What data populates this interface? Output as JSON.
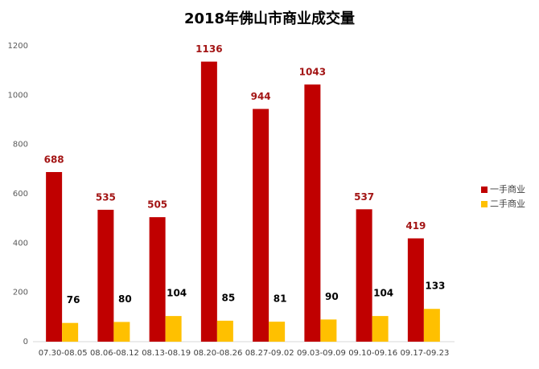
{
  "chart_data": {
    "type": "bar",
    "title": "2018年佛山市商业成交量",
    "categories": [
      "07.30-08.05",
      "08.06-08.12",
      "08.13-08.19",
      "08.20-08.26",
      "08.27-09.02",
      "09.03-09.09",
      "09.10-09.16",
      "09.17-09.23"
    ],
    "series": [
      {
        "name": "一手商业",
        "color": "#c00000",
        "values": [
          688,
          535,
          505,
          1136,
          944,
          1043,
          537,
          419
        ]
      },
      {
        "name": "二手商业",
        "color": "#ffc000",
        "values": [
          76,
          80,
          104,
          85,
          81,
          90,
          104,
          133
        ]
      }
    ],
    "ylim": [
      0,
      1200
    ],
    "yticks": [
      0,
      200,
      400,
      600,
      800,
      1000,
      1200
    ],
    "grid": false,
    "legend": "right"
  }
}
